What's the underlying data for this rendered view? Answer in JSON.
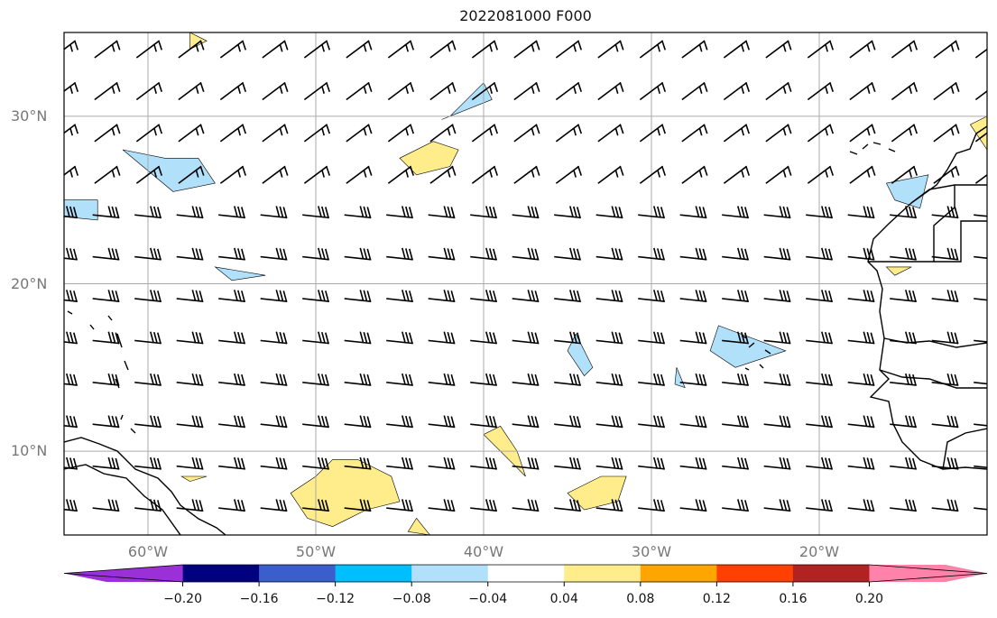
{
  "title": "2022081000 F000",
  "axes": {
    "lat_ticks": [
      {
        "value": 30,
        "label": "30°N"
      },
      {
        "value": 20,
        "label": "20°N"
      },
      {
        "value": 10,
        "label": "10°N"
      }
    ],
    "lon_ticks": [
      {
        "value": -60,
        "label": "60°W"
      },
      {
        "value": -50,
        "label": "50°W"
      },
      {
        "value": -40,
        "label": "40°W"
      },
      {
        "value": -30,
        "label": "30°W"
      },
      {
        "value": -20,
        "label": "20°W"
      }
    ],
    "lon_range": [
      -65,
      -10
    ],
    "lat_range": [
      5,
      35
    ],
    "grid": true
  },
  "colorbar": {
    "bounds": [
      -0.24,
      -0.2,
      -0.16,
      -0.12,
      -0.08,
      -0.04,
      0.04,
      0.08,
      0.12,
      0.16,
      0.2,
      0.24
    ],
    "colors": [
      "#9b30d9",
      "#000080",
      "#3a5fcd",
      "#00bfff",
      "#b0e0fa",
      "#ffffff",
      "#ffec8b",
      "#ffa500",
      "#ff4000",
      "#b22222",
      "#ff82ab"
    ],
    "extend": "both",
    "labels": [
      "−0.20",
      "−0.16",
      "−0.12",
      "−0.08",
      "−0.04",
      "0.04",
      "0.08",
      "0.12",
      "0.16",
      "0.20"
    ]
  },
  "contours": {
    "positive_color": "#ffec8b",
    "negative_color": "#b0e0fa",
    "positive": [
      [
        [
          -47.5,
          9.5
        ],
        [
          -45.5,
          8.5
        ],
        [
          -45,
          7
        ],
        [
          -47,
          6.5
        ],
        [
          -49,
          5.5
        ],
        [
          -50.5,
          6
        ],
        [
          -51.5,
          7.5
        ],
        [
          -50,
          8.5
        ],
        [
          -49,
          9.5
        ]
      ],
      [
        [
          -45,
          27.5
        ],
        [
          -43,
          28.5
        ],
        [
          -41.5,
          28
        ],
        [
          -42,
          27
        ],
        [
          -44,
          26.5
        ]
      ],
      [
        [
          -39,
          11.5
        ],
        [
          -38,
          10
        ],
        [
          -37.5,
          8.5
        ],
        [
          -38.5,
          9.5
        ],
        [
          -40,
          11
        ]
      ],
      [
        [
          -33,
          8.5
        ],
        [
          -31.5,
          8.5
        ],
        [
          -32,
          7
        ],
        [
          -34,
          6.5
        ],
        [
          -35,
          7.5
        ]
      ],
      [
        [
          -57.5,
          34
        ],
        [
          -56.5,
          34.5
        ],
        [
          -57.5,
          35
        ]
      ],
      [
        [
          -16,
          21
        ],
        [
          -14.5,
          21
        ],
        [
          -15.5,
          20.5
        ]
      ],
      [
        [
          -11,
          29.5
        ],
        [
          -10,
          30
        ],
        [
          -10,
          28
        ]
      ],
      [
        [
          -58,
          8.5
        ],
        [
          -56.5,
          8.5
        ],
        [
          -57.5,
          8.2
        ]
      ],
      [
        [
          -44,
          6
        ],
        [
          -43.2,
          5
        ],
        [
          -44.5,
          5.2
        ]
      ]
    ],
    "negative": [
      [
        [
          -57,
          27.5
        ],
        [
          -59,
          27.5
        ],
        [
          -61.5,
          28
        ],
        [
          -58.5,
          25.5
        ],
        [
          -56,
          26
        ]
      ],
      [
        [
          -42,
          30
        ],
        [
          -40,
          32
        ],
        [
          -39.5,
          31
        ],
        [
          -42.5,
          29.8
        ]
      ],
      [
        [
          -63,
          25
        ],
        [
          -65,
          25
        ],
        [
          -65,
          24
        ],
        [
          -63,
          23.8
        ]
      ],
      [
        [
          -56,
          21
        ],
        [
          -53,
          20.5
        ],
        [
          -55,
          20.2
        ]
      ],
      [
        [
          -26,
          17.5
        ],
        [
          -22,
          16
        ],
        [
          -25,
          15
        ],
        [
          -26.5,
          16
        ]
      ],
      [
        [
          -34.5,
          17
        ],
        [
          -33.5,
          15
        ],
        [
          -34,
          14.5
        ],
        [
          -35,
          16
        ]
      ],
      [
        [
          -16,
          26
        ],
        [
          -13.5,
          26.5
        ],
        [
          -14,
          24.5
        ],
        [
          -15.5,
          25
        ]
      ],
      [
        [
          -28.5,
          15
        ],
        [
          -28,
          13.8
        ],
        [
          -28.6,
          14
        ]
      ]
    ]
  },
  "wind_barbs": {
    "lons": [
      -65,
      -62.5,
      -60,
      -57.5,
      -55,
      -52.5,
      -50,
      -47.5,
      -45,
      -42.5,
      -40,
      -37.5,
      -35,
      -32.5,
      -30,
      -27.5,
      -25,
      -22.5,
      -20,
      -17.5,
      -15,
      -12.5,
      -10
    ],
    "lats": [
      34,
      31.5,
      29,
      26.5,
      24,
      21.5,
      19,
      16.5,
      14,
      11.5,
      9,
      6.5
    ]
  }
}
